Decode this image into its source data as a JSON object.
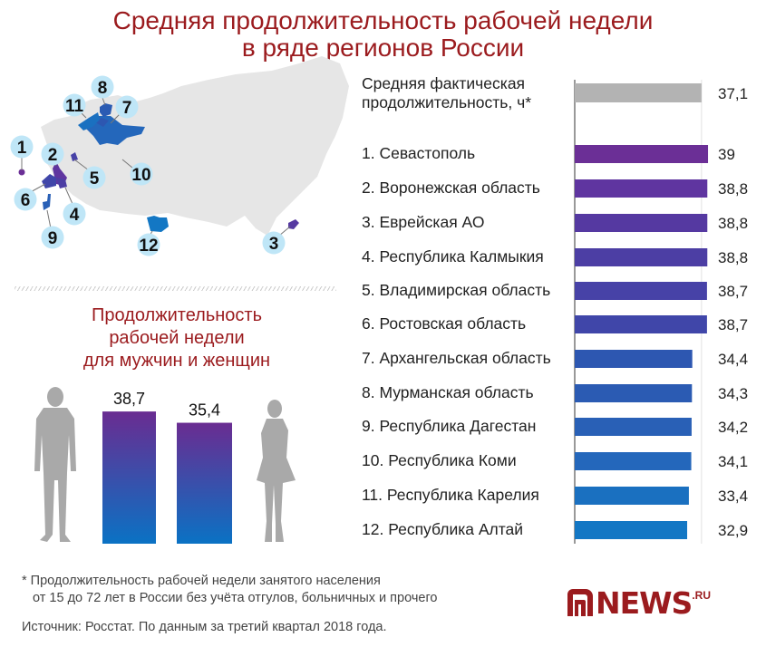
{
  "title": {
    "line1": "Средняя продолжительность рабочей недели",
    "line2": "в ряде регионов России"
  },
  "map": {
    "markers": [
      "1",
      "2",
      "3",
      "4",
      "5",
      "6",
      "7",
      "8",
      "9",
      "10",
      "11",
      "12"
    ]
  },
  "chart_data": [
    {
      "type": "bar",
      "orientation": "horizontal",
      "reference": {
        "label_line1": "Средняя фактическая",
        "label_line2": "продолжительность, ч*",
        "value": 37.1,
        "value_label": "37,1",
        "color": "#b3b3b3"
      },
      "categories": [
        "1. Севастополь",
        "2. Воронежская область",
        "3. Еврейская АО",
        "4. Республика Калмыкия",
        "5. Владимирская область",
        "6. Ростовская область",
        "7. Архангельская область",
        "8. Мурманская область",
        "9. Республика Дагестан",
        "10. Республика Коми",
        "11.  Республика Карелия",
        "12. Республика Алтай"
      ],
      "values": [
        39,
        38.8,
        38.8,
        38.8,
        38.7,
        38.7,
        34.4,
        34.3,
        34.2,
        34.1,
        33.4,
        32.9
      ],
      "value_labels": [
        "39",
        "38,8",
        "38,8",
        "38,8",
        "38,7",
        "38,7",
        "34,4",
        "34,3",
        "34,2",
        "34,1",
        "33,4",
        "32,9"
      ],
      "colors": [
        "#6b2f96",
        "#5f35a0",
        "#5539a1",
        "#4c3ea4",
        "#4742a7",
        "#4046a9",
        "#2d57b1",
        "#2b5bb3",
        "#2960b6",
        "#2467bb",
        "#1a70c0",
        "#1377c4"
      ],
      "xlim": [
        0,
        39
      ]
    },
    {
      "type": "bar",
      "title_line1": "Продолжительность",
      "title_line2": "рабочей недели",
      "title_line3": "для мужчин и женщин",
      "categories": [
        "мужчины",
        "женщины"
      ],
      "values": [
        38.7,
        35.4
      ],
      "value_labels": [
        "38,7",
        "35,4"
      ],
      "gradient": [
        "#6a2c91",
        "#0a72c4"
      ],
      "ylim": [
        0,
        38.7
      ]
    }
  ],
  "footnote": {
    "line1": "* Продолжительность рабочей недели занятого населения",
    "line2": "от 15 до 72 лет в России без учёта отгулов, больничных и прочего"
  },
  "source": "Источник: Росстат. По данным за третий квартал 2018 года.",
  "logo": {
    "text": "NEWS",
    "suffix": ".RU",
    "color": "#9b1b1e"
  }
}
